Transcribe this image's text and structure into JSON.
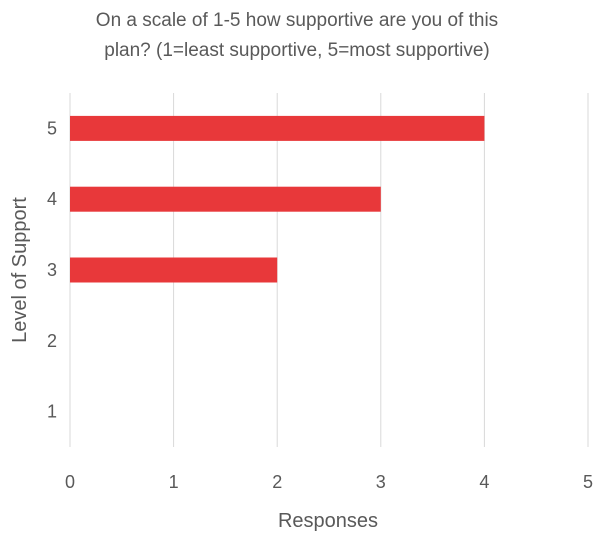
{
  "chart_data": {
    "type": "bar",
    "orientation": "horizontal",
    "title_lines": [
      "On a scale of 1-5 how supportive are you of this",
      "plan? (1=least supportive, 5=most supportive)"
    ],
    "xlabel": "Responses",
    "ylabel": "Level of Support",
    "categories": [
      "1",
      "2",
      "3",
      "4",
      "5"
    ],
    "values": [
      0,
      0,
      2,
      3,
      4
    ],
    "xlim": [
      0,
      5
    ],
    "xticks": [
      "0",
      "1",
      "2",
      "3",
      "4",
      "5"
    ],
    "grid": "vertical",
    "legend": "none",
    "bar_color": "#e8383a",
    "grid_color": "#d9d9d9",
    "text_color": "#595959"
  }
}
